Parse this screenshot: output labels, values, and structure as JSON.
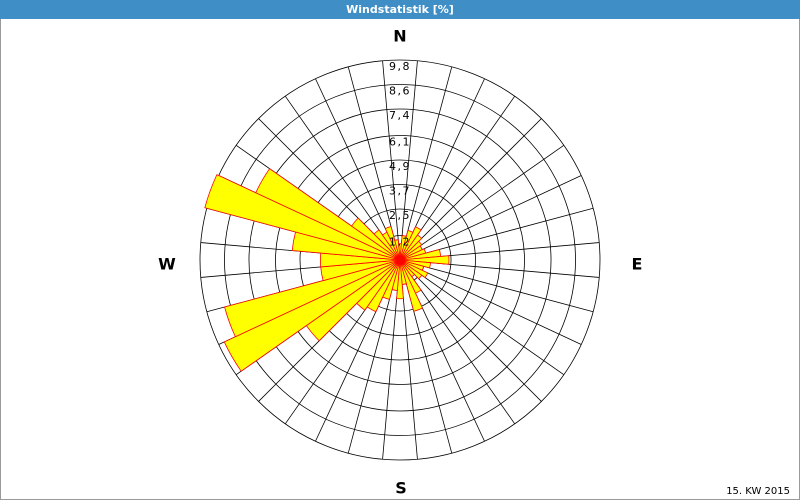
{
  "chart_data": {
    "type": "windrose",
    "title": "Windstatistik [%]",
    "compass_labels": {
      "N": "N",
      "E": "E",
      "S": "S",
      "W": "W"
    },
    "footer": "15. KW 2015",
    "values": [
      0.8,
      1.2,
      1.5,
      1.8,
      1.5,
      1.3,
      1.2,
      1.3,
      2.0,
      2.4,
      1.5,
      1.2,
      1.5,
      1.3,
      1.0,
      1.8,
      2.6,
      1.2,
      1.9,
      1.5,
      2.0,
      2.8,
      3.0,
      5.6,
      9.5,
      8.9,
      3.9,
      3.9,
      5.3,
      9.9,
      7.8,
      2.9,
      1.8,
      1.5,
      1.7,
      1.0
    ],
    "color": "#ffff00",
    "edge_color": "#ff0000",
    "ylim": [
      0,
      9.8
    ],
    "yticks": [
      {
        "value": 1.2,
        "label": "1,2"
      },
      {
        "value": 2.5,
        "label": "2,5"
      },
      {
        "value": 3.7,
        "label": "3,7"
      },
      {
        "value": 4.9,
        "label": "4,9"
      },
      {
        "value": 6.1,
        "label": "6,1"
      },
      {
        "value": 7.4,
        "label": "7,4"
      },
      {
        "value": 8.6,
        "label": "8,6"
      },
      {
        "value": 9.8,
        "label": "9,8"
      }
    ],
    "grid": true
  }
}
